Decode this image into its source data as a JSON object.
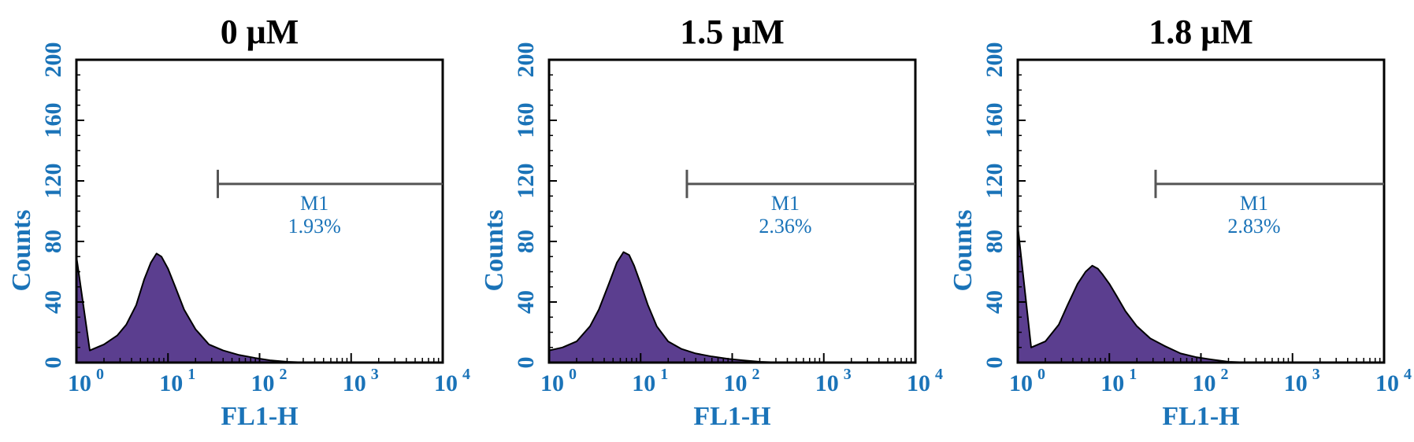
{
  "colors": {
    "axis_text": "#1a73b8",
    "fill": "#5b3e8f",
    "outline": "#000000",
    "marker": "#555555"
  },
  "chart_data": [
    {
      "type": "area",
      "title": "0 μM",
      "xlabel": "FL1-H",
      "ylabel": "Counts",
      "xscale": "log",
      "xlim": [
        1,
        10000
      ],
      "ylim": [
        0,
        200
      ],
      "xticks": [
        "10",
        "10",
        "10",
        "10",
        "10"
      ],
      "xtick_exponents": [
        "0",
        "1",
        "2",
        "3",
        "4"
      ],
      "yticks": [
        "0",
        "40",
        "80",
        "120",
        "160",
        "200"
      ],
      "marker": {
        "label": "M1",
        "percent": "1.93%",
        "x_start": 35,
        "x_end": 10000,
        "y": 118
      },
      "series": [
        {
          "x": [
            1,
            1.4,
            2,
            2.8,
            3.5,
            4.5,
            5.5,
            6.5,
            7.5,
            8.5,
            10,
            12,
            15,
            20,
            28,
            40,
            60,
            90,
            130,
            200,
            350,
            1000,
            10000
          ],
          "values": [
            70,
            8,
            12,
            18,
            25,
            38,
            55,
            66,
            72,
            70,
            62,
            50,
            35,
            22,
            12,
            8,
            5,
            3,
            1.5,
            0.5,
            0,
            0,
            0
          ]
        }
      ]
    },
    {
      "type": "area",
      "title": "1.5 μM",
      "xlabel": "FL1-H",
      "ylabel": "Counts",
      "xscale": "log",
      "xlim": [
        1,
        10000
      ],
      "ylim": [
        0,
        200
      ],
      "xticks": [
        "10",
        "10",
        "10",
        "10",
        "10"
      ],
      "xtick_exponents": [
        "0",
        "1",
        "2",
        "3",
        "4"
      ],
      "yticks": [
        "0",
        "40",
        "80",
        "120",
        "160",
        "200"
      ],
      "marker": {
        "label": "M1",
        "percent": "2.36%",
        "x_start": 32,
        "x_end": 10000,
        "y": 118
      },
      "series": [
        {
          "x": [
            1,
            1.4,
            2,
            2.8,
            3.5,
            4.5,
            5.5,
            6.5,
            7.5,
            8.5,
            10,
            12,
            15,
            20,
            28,
            40,
            60,
            90,
            130,
            200,
            350,
            1000,
            10000
          ],
          "values": [
            8,
            10,
            14,
            24,
            35,
            52,
            66,
            73,
            71,
            64,
            52,
            38,
            24,
            14,
            9,
            6,
            4,
            2.5,
            1.5,
            0.5,
            0,
            0,
            0
          ]
        }
      ]
    },
    {
      "type": "area",
      "title": "1.8 μM",
      "xlabel": "FL1-H",
      "ylabel": "Counts",
      "xscale": "log",
      "xlim": [
        1,
        10000
      ],
      "ylim": [
        0,
        200
      ],
      "xticks": [
        "10",
        "10",
        "10",
        "10",
        "10"
      ],
      "xtick_exponents": [
        "0",
        "1",
        "2",
        "3",
        "4"
      ],
      "yticks": [
        "0",
        "40",
        "80",
        "120",
        "160",
        "200"
      ],
      "marker": {
        "label": "M1",
        "percent": "2.83%",
        "x_start": 32,
        "x_end": 10000,
        "y": 118
      },
      "series": [
        {
          "x": [
            1,
            1.4,
            2,
            2.8,
            3.5,
            4.5,
            5.5,
            6.5,
            7.5,
            8.5,
            10,
            12,
            15,
            20,
            28,
            40,
            60,
            90,
            130,
            200,
            350,
            1000,
            10000
          ],
          "values": [
            90,
            10,
            14,
            25,
            38,
            52,
            60,
            64,
            62,
            58,
            52,
            44,
            34,
            24,
            16,
            11,
            6,
            3.5,
            2,
            0.5,
            0,
            0,
            0
          ]
        }
      ]
    }
  ]
}
